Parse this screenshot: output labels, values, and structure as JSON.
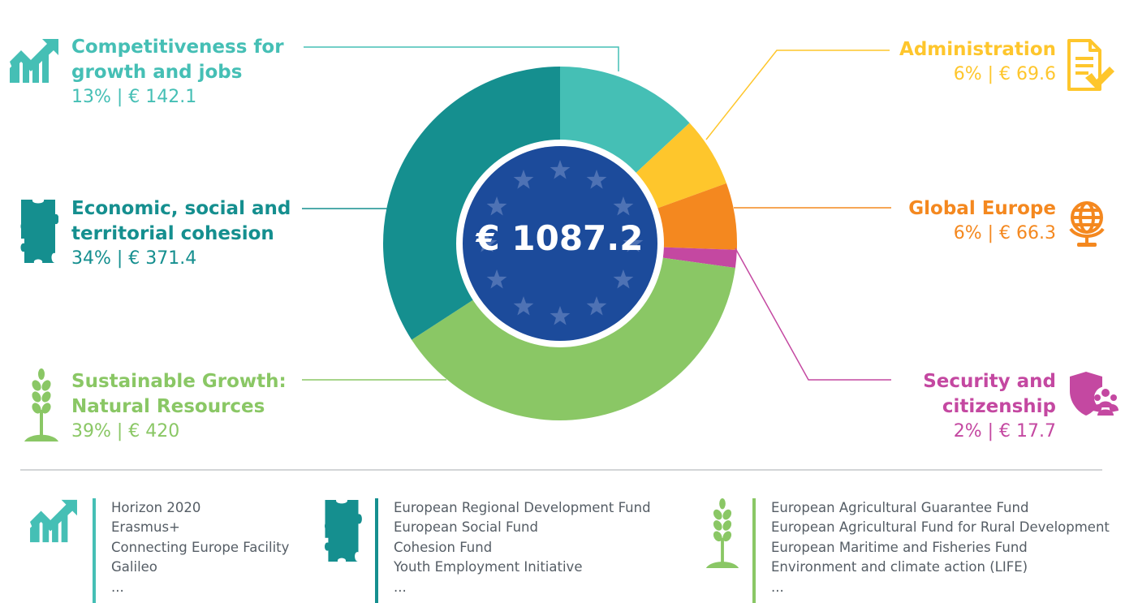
{
  "chart_data": {
    "type": "pie",
    "donut": true,
    "total": 1087.2,
    "total_label": "€ 1087.2",
    "slices": [
      {
        "label": "Competitiveness for growth and jobs",
        "percent": 13,
        "value": 142.1,
        "value_label": "13% | € 142.1",
        "color": "#45bfb5"
      },
      {
        "label": "Administration",
        "percent": 6,
        "value": 69.6,
        "value_label": "6% | € 69.6",
        "color": "#fec62c"
      },
      {
        "label": "Global Europe",
        "percent": 6,
        "value": 66.3,
        "value_label": "6% | € 66.3",
        "color": "#f4881f"
      },
      {
        "label": "Security and citizenship",
        "percent": 2,
        "value": 17.7,
        "value_label": "2% | € 17.7",
        "color": "#c448a1"
      },
      {
        "label": "Sustainable Growth: Natural Resources",
        "percent": 39,
        "value": 420,
        "value_label": "39% | € 420",
        "color": "#8ac765"
      },
      {
        "label": "Economic, social and territorial cohesion",
        "percent": 34,
        "value": 371.4,
        "value_label": "34% | € 371.4",
        "color": "#158f8f"
      }
    ]
  },
  "labels": {
    "competitiveness": {
      "title": "Competitiveness for\ngrowth and jobs",
      "sub": "13% | € 142.1",
      "color": "#45bfb5",
      "icon": "growth-chart-icon"
    },
    "cohesion": {
      "title": "Economic, social and\nterritorial cohesion",
      "sub": "34% | € 371.4",
      "color": "#158f8f",
      "icon": "puzzle-piece-icon"
    },
    "natural": {
      "title": "Sustainable Growth:\nNatural Resources",
      "sub": "39% | € 420",
      "color": "#8ac765",
      "icon": "wheat-icon"
    },
    "administration": {
      "title": "Administration",
      "sub": "6% | € 69.6",
      "color": "#fec62c",
      "icon": "document-check-icon"
    },
    "global": {
      "title": "Global Europe",
      "sub": "6% | € 66.3",
      "color": "#f4881f",
      "icon": "globe-icon"
    },
    "security": {
      "title": "Security and\ncitizenship",
      "sub": "2% | € 17.7",
      "color": "#c448a1",
      "icon": "shield-people-icon"
    }
  },
  "funds": [
    {
      "color": "#45bfb5",
      "icon": "growth-chart-icon",
      "items": [
        "Horizon 2020",
        "Erasmus+",
        "Connecting Europe Facility",
        "Galileo",
        "..."
      ]
    },
    {
      "color": "#158f8f",
      "icon": "puzzle-piece-icon",
      "items": [
        "European Regional Development Fund",
        "European Social Fund",
        "Cohesion Fund",
        "Youth Employment Initiative",
        "..."
      ]
    },
    {
      "color": "#8ac765",
      "icon": "wheat-icon",
      "items": [
        "European Agricultural Guarantee Fund",
        "European Agricultural Fund for Rural Development",
        "European Maritime and Fisheries Fund",
        "Environment and climate action (LIFE)",
        "..."
      ]
    }
  ],
  "colors": {
    "eu_blue": "#1c4b9b",
    "star": "#4e72b4",
    "divider": "#b9bcbf"
  }
}
